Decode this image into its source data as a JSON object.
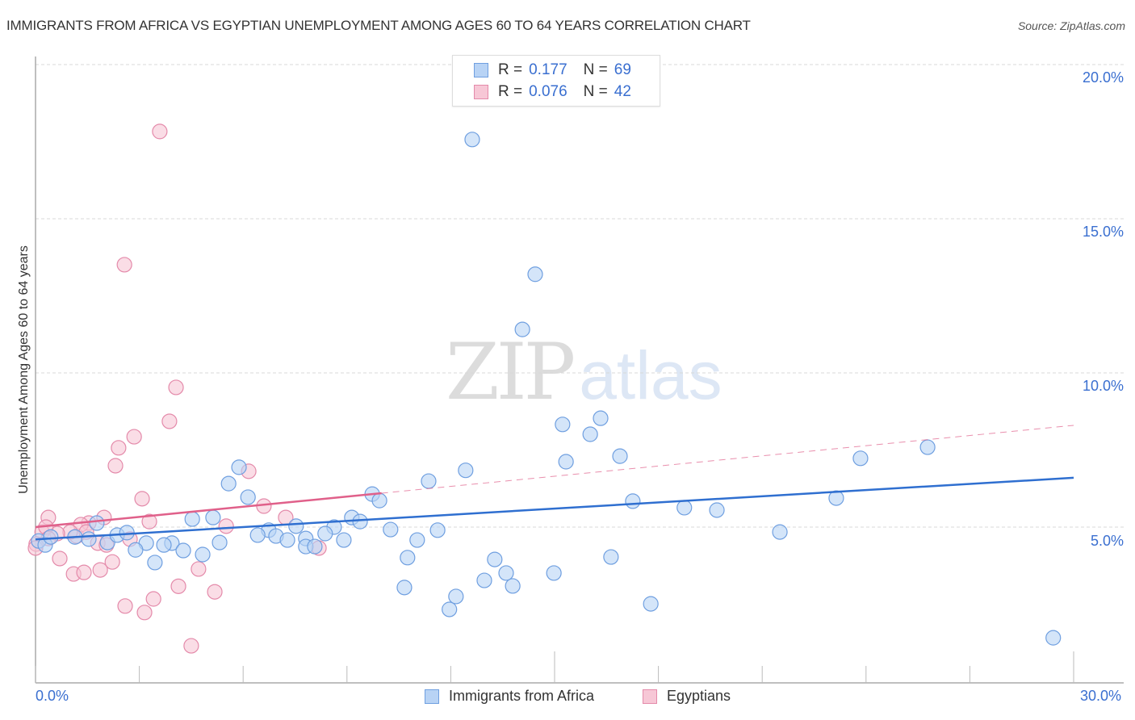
{
  "header": {
    "title": "IMMIGRANTS FROM AFRICA VS EGYPTIAN UNEMPLOYMENT AMONG AGES 60 TO 64 YEARS CORRELATION CHART",
    "source": "Source: ZipAtlas.com"
  },
  "legend": {
    "rows": [
      {
        "r_label": "R =",
        "r_value": "0.177",
        "n_label": "N =",
        "n_value": "69",
        "color": "#b8d3f5",
        "border": "#6f9fe0"
      },
      {
        "r_label": "R =",
        "r_value": "0.076",
        "n_label": "N =",
        "n_value": "42",
        "color": "#f7c7d6",
        "border": "#e48aaa"
      }
    ]
  },
  "bottom_legend": {
    "series_a": "Immigrants from Africa",
    "series_b": "Egyptians"
  },
  "axes": {
    "ylabel": "Unemployment Among Ages 60 to 64 years",
    "x_min_label": "0.0%",
    "x_max_label": "30.0%",
    "y_ticks": [
      "20.0%",
      "15.0%",
      "10.0%",
      "5.0%"
    ]
  },
  "watermark": {
    "zip": "ZIP",
    "atlas": "atlas"
  },
  "colors": {
    "blue_fill": "#b8d3f5",
    "blue_stroke": "#6f9fe0",
    "blue_line": "#2f6fd0",
    "pink_fill": "#f7c7d6",
    "pink_stroke": "#e48aaa",
    "pink_line": "#e0608a",
    "tick_label": "#3a6fd0"
  },
  "chart_data": {
    "type": "scatter",
    "title": "IMMIGRANTS FROM AFRICA VS EGYPTIAN UNEMPLOYMENT AMONG AGES 60 TO 64 YEARS CORRELATION CHART",
    "xlabel": "Immigrants from Africa (%)",
    "ylabel": "Unemployment Among Ages 60 to 64 years",
    "xlim": [
      0,
      30
    ],
    "ylim": [
      0,
      20
    ],
    "x_tick_labels": [
      "0.0%",
      "30.0%"
    ],
    "y_tick_labels": [
      "5.0%",
      "10.0%",
      "15.0%",
      "20.0%"
    ],
    "grid": true,
    "legend_position": "top-center",
    "series": [
      {
        "name": "Immigrants from Africa",
        "R": 0.177,
        "N": 69,
        "trend": {
          "x0": 0,
          "y0": 4.6,
          "x1": 30,
          "y1": 6.6
        },
        "points": [
          [
            12.62,
            17.57
          ],
          [
            14.44,
            13.2
          ],
          [
            14.07,
            11.41
          ],
          [
            15.23,
            8.33
          ],
          [
            16.33,
            8.53
          ],
          [
            16.03,
            8.01
          ],
          [
            15.33,
            7.12
          ],
          [
            16.89,
            7.3
          ],
          [
            12.43,
            6.84
          ],
          [
            11.36,
            6.49
          ],
          [
            25.78,
            7.59
          ],
          [
            23.84,
            7.23
          ],
          [
            5.88,
            6.94
          ],
          [
            5.58,
            6.41
          ],
          [
            6.14,
            5.97
          ],
          [
            9.73,
            6.07
          ],
          [
            9.94,
            5.86
          ],
          [
            23.14,
            5.94
          ],
          [
            17.26,
            5.84
          ],
          [
            18.75,
            5.63
          ],
          [
            19.69,
            5.55
          ],
          [
            4.53,
            5.26
          ],
          [
            5.13,
            5.31
          ],
          [
            9.14,
            5.31
          ],
          [
            9.38,
            5.18
          ],
          [
            8.63,
            5.0
          ],
          [
            10.26,
            4.92
          ],
          [
            11.62,
            4.9
          ],
          [
            7.53,
            5.03
          ],
          [
            6.74,
            4.9
          ],
          [
            6.42,
            4.74
          ],
          [
            6.95,
            4.71
          ],
          [
            7.28,
            4.58
          ],
          [
            7.81,
            4.63
          ],
          [
            8.37,
            4.79
          ],
          [
            8.91,
            4.58
          ],
          [
            11.03,
            4.58
          ],
          [
            3.94,
            4.48
          ],
          [
            3.2,
            4.48
          ],
          [
            2.08,
            4.5
          ],
          [
            2.36,
            4.74
          ],
          [
            2.64,
            4.82
          ],
          [
            3.71,
            4.42
          ],
          [
            5.32,
            4.5
          ],
          [
            21.51,
            4.84
          ],
          [
            7.81,
            4.37
          ],
          [
            8.07,
            4.37
          ],
          [
            2.89,
            4.26
          ],
          [
            4.27,
            4.24
          ],
          [
            4.83,
            4.11
          ],
          [
            3.45,
            3.85
          ],
          [
            10.75,
            4.01
          ],
          [
            13.27,
            3.95
          ],
          [
            13.6,
            3.51
          ],
          [
            16.63,
            4.03
          ],
          [
            12.97,
            3.27
          ],
          [
            14.98,
            3.51
          ],
          [
            13.79,
            3.09
          ],
          [
            10.66,
            3.04
          ],
          [
            12.15,
            2.75
          ],
          [
            11.96,
            2.33
          ],
          [
            17.78,
            2.51
          ],
          [
            29.41,
            1.41
          ],
          [
            0.09,
            4.55
          ],
          [
            0.28,
            4.42
          ],
          [
            0.44,
            4.68
          ],
          [
            1.14,
            4.68
          ],
          [
            1.54,
            4.61
          ],
          [
            1.77,
            5.13
          ]
        ]
      },
      {
        "name": "Egyptians",
        "R": 0.076,
        "N": 42,
        "trend": {
          "x0": 0,
          "y0": 5.0,
          "x1": 10,
          "y1": 6.1,
          "dashed_to": {
            "x": 30,
            "y": 8.3
          }
        },
        "points": [
          [
            3.59,
            17.83
          ],
          [
            2.57,
            13.51
          ],
          [
            4.06,
            9.53
          ],
          [
            3.87,
            8.43
          ],
          [
            2.85,
            7.93
          ],
          [
            2.4,
            7.57
          ],
          [
            2.31,
            6.99
          ],
          [
            6.16,
            6.81
          ],
          [
            3.08,
            5.92
          ],
          [
            3.29,
            5.18
          ],
          [
            1.54,
            5.13
          ],
          [
            1.98,
            5.31
          ],
          [
            6.6,
            5.68
          ],
          [
            7.23,
            5.31
          ],
          [
            5.51,
            5.03
          ],
          [
            2.73,
            4.61
          ],
          [
            1.8,
            4.48
          ],
          [
            2.05,
            4.42
          ],
          [
            1.19,
            4.71
          ],
          [
            1.31,
            5.08
          ],
          [
            0.37,
            5.31
          ],
          [
            8.19,
            4.32
          ],
          [
            2.22,
            3.87
          ],
          [
            0.7,
            3.98
          ],
          [
            1.1,
            3.48
          ],
          [
            1.4,
            3.53
          ],
          [
            1.87,
            3.61
          ],
          [
            4.71,
            3.64
          ],
          [
            4.13,
            3.08
          ],
          [
            5.18,
            2.9
          ],
          [
            2.59,
            2.44
          ],
          [
            3.15,
            2.23
          ],
          [
            3.41,
            2.67
          ],
          [
            4.5,
            1.15
          ],
          [
            0.19,
            4.84
          ],
          [
            0.02,
            4.45
          ],
          [
            1.0,
            4.84
          ],
          [
            0.63,
            4.79
          ],
          [
            0.3,
            5.0
          ],
          [
            1.47,
            4.84
          ],
          [
            0.0,
            4.32
          ],
          [
            0.37,
            4.63
          ]
        ]
      }
    ]
  }
}
